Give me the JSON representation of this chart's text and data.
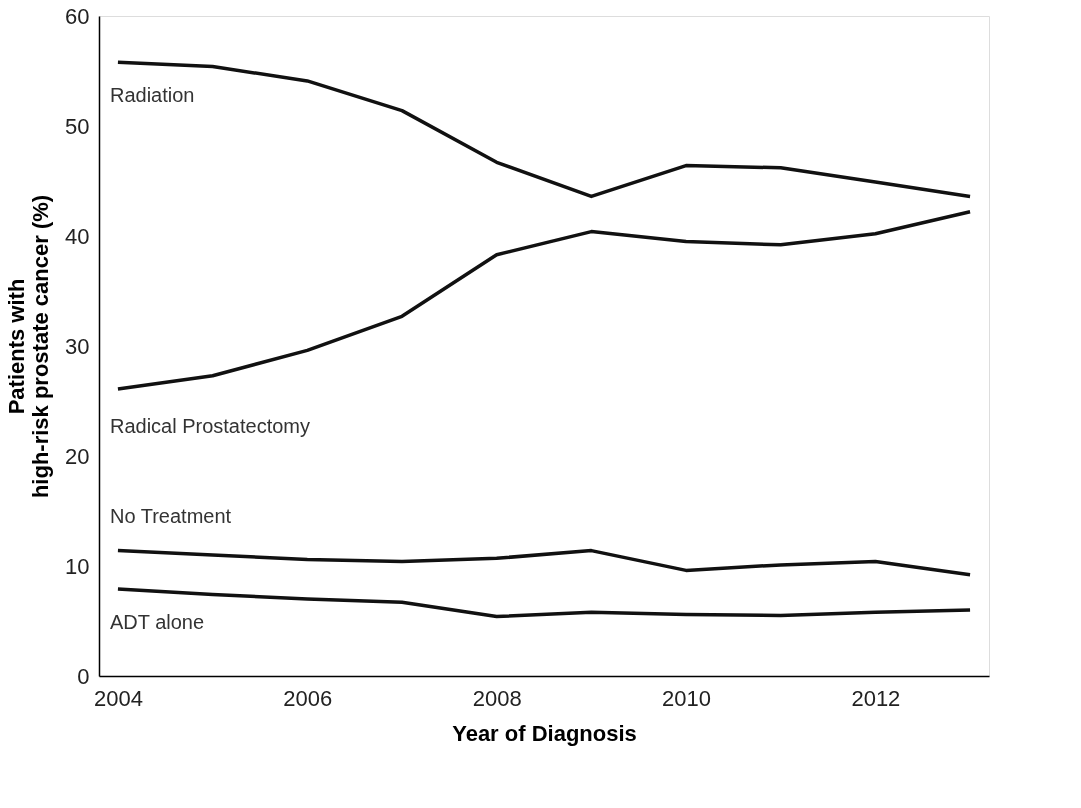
{
  "chart_data": {
    "type": "line",
    "xlabel": "Year of Diagnosis",
    "ylabel": "Patients with\nhigh-risk prostate cancer (%)",
    "x": [
      2004,
      2005,
      2006,
      2007,
      2008,
      2009,
      2010,
      2011,
      2012,
      2013
    ],
    "series": [
      {
        "name": "Radiation",
        "color": "#111111",
        "values": [
          55.8,
          55.4,
          54.1,
          51.4,
          46.7,
          43.6,
          46.4,
          46.2,
          44.9,
          43.6
        ]
      },
      {
        "name": "Radical Prostatectomy",
        "color": "#111111",
        "values": [
          26.1,
          27.3,
          29.6,
          32.7,
          38.3,
          40.4,
          39.5,
          39.2,
          40.2,
          42.2
        ]
      },
      {
        "name": "No Treatment",
        "color": "#111111",
        "values": [
          11.4,
          11.0,
          10.6,
          10.4,
          10.7,
          11.4,
          9.6,
          10.1,
          10.4,
          9.2
        ]
      },
      {
        "name": "ADT alone",
        "color": "#111111",
        "values": [
          7.9,
          7.4,
          7.0,
          6.7,
          5.4,
          5.8,
          5.6,
          5.5,
          5.8,
          6.0
        ]
      }
    ],
    "xlim": [
      2003.8,
      2013.2
    ],
    "xticks": [
      2004,
      2006,
      2008,
      2010,
      2012
    ],
    "ylim": [
      0,
      60
    ],
    "yticks": [
      0,
      10,
      20,
      30,
      40,
      50,
      60
    ],
    "grid": false,
    "marker": "none",
    "line_style": "solid"
  }
}
